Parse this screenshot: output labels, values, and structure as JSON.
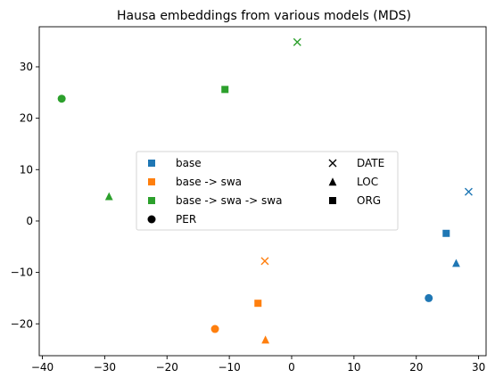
{
  "chart_data": {
    "type": "scatter",
    "title": "Hausa embeddings from various models (MDS)",
    "xlabel": "",
    "ylabel": "",
    "xlim": [
      -40.5,
      31.2
    ],
    "ylim": [
      -26.2,
      37.8
    ],
    "xticks": [
      -40,
      -30,
      -20,
      -10,
      0,
      10,
      20,
      30
    ],
    "yticks": [
      -20,
      -10,
      0,
      10,
      20,
      30
    ],
    "grid": false,
    "legend_placement": "center",
    "colors": {
      "base": "#1f77b4",
      "base -> swa": "#ff7f0e",
      "base -> swa -> swa": "#2ca02c"
    },
    "points": [
      {
        "model": "base",
        "entity": "DATE",
        "x": 28.4,
        "y": 5.7
      },
      {
        "model": "base",
        "entity": "ORG",
        "x": 24.8,
        "y": -2.4
      },
      {
        "model": "base",
        "entity": "LOC",
        "x": 26.4,
        "y": -8.2
      },
      {
        "model": "base",
        "entity": "PER",
        "x": 22.0,
        "y": -15.0
      },
      {
        "model": "base -> swa",
        "entity": "DATE",
        "x": -4.3,
        "y": -7.8
      },
      {
        "model": "base -> swa",
        "entity": "ORG",
        "x": -5.4,
        "y": -16.0
      },
      {
        "model": "base -> swa",
        "entity": "PER",
        "x": -12.3,
        "y": -21.0
      },
      {
        "model": "base -> swa",
        "entity": "LOC",
        "x": -4.2,
        "y": -23.1
      },
      {
        "model": "base -> swa -> swa",
        "entity": "DATE",
        "x": 0.9,
        "y": 34.8
      },
      {
        "model": "base -> swa -> swa",
        "entity": "ORG",
        "x": -10.7,
        "y": 25.6
      },
      {
        "model": "base -> swa -> swa",
        "entity": "PER",
        "x": -36.9,
        "y": 23.8
      },
      {
        "model": "base -> swa -> swa",
        "entity": "LOC",
        "x": -29.3,
        "y": 4.8
      }
    ],
    "legend": {
      "left_column": [
        {
          "label": "base",
          "marker": "ORG",
          "color": "#1f77b4"
        },
        {
          "label": "base -> swa",
          "marker": "ORG",
          "color": "#ff7f0e"
        },
        {
          "label": "base -> swa -> swa",
          "marker": "ORG",
          "color": "#2ca02c"
        },
        {
          "label": "PER",
          "marker": "PER",
          "color": "#000000"
        }
      ],
      "right_column": [
        {
          "label": "DATE",
          "marker": "DATE",
          "color": "#000000"
        },
        {
          "label": "LOC",
          "marker": "LOC",
          "color": "#000000"
        },
        {
          "label": "ORG",
          "marker": "ORG",
          "color": "#000000"
        }
      ]
    }
  }
}
